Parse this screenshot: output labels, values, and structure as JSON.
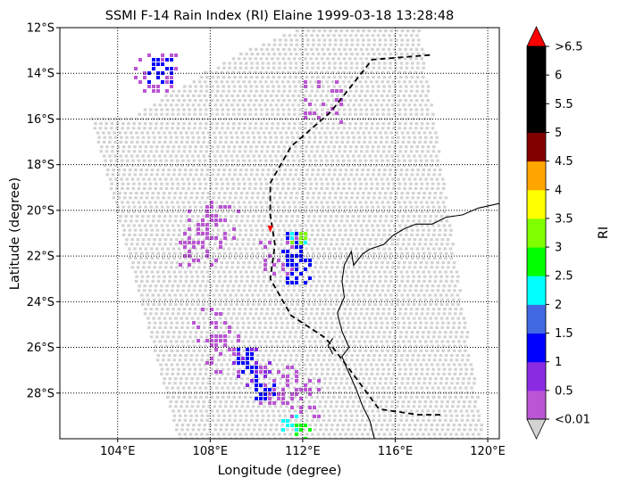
{
  "chart_data": {
    "type": "heatmap",
    "title": "SSMI F-14 Rain Index (RI) Elaine 1999-03-18 13:28:48",
    "xlabel": "Longitude (degree)",
    "ylabel": "Latitude (degree)",
    "xlim": [
      101.5,
      120.5
    ],
    "ylim": [
      -30,
      -12
    ],
    "xticks": [
      104,
      108,
      112,
      116,
      120
    ],
    "xtick_labels": [
      "104°E",
      "108°E",
      "112°E",
      "116°E",
      "120°E"
    ],
    "yticks": [
      -12,
      -14,
      -16,
      -18,
      -20,
      -22,
      -24,
      -26,
      -28
    ],
    "ytick_labels": [
      "12°S",
      "14°S",
      "16°S",
      "18°S",
      "20°S",
      "22°S",
      "24°S",
      "26°S",
      "28°S"
    ],
    "grid": "dotted",
    "colorbar": {
      "label": "RI",
      "tick_labels": [
        "<0.01",
        "0.5",
        "1",
        "1.5",
        "2",
        "2.5",
        "3",
        "3.5",
        "4",
        "4.5",
        "5",
        "5.5",
        "6",
        ">6.5"
      ],
      "bounds": [
        0.01,
        0.5,
        1,
        1.5,
        2,
        2.5,
        3,
        3.5,
        4,
        4.5,
        5,
        5.5,
        6,
        6.5
      ],
      "colors": [
        "#ba55d3",
        "#8a2be2",
        "#0000ff",
        "#4169e1",
        "#00ffff",
        "#00ff00",
        "#7fff00",
        "#ffff00",
        "#ffa500",
        "#800000",
        "#000000",
        "#000000",
        "#000000"
      ],
      "under_color": "#d3d3d3",
      "over_color": "#ff0000",
      "extend": "both"
    },
    "swath_color": "#d3d3d3",
    "swath_corners": [
      [
        107.4,
        -12.0
      ],
      [
        117.0,
        -12.0
      ],
      [
        119.8,
        -30.0
      ],
      [
        112.0,
        -30.0
      ],
      [
        106.6,
        -30.0
      ],
      [
        102.8,
        -15.8
      ],
      [
        107.4,
        -12.0
      ]
    ],
    "rain_regions": [
      {
        "lon": 107.6,
        "lat": -20.8,
        "ri": 0.3
      },
      {
        "lon": 107.4,
        "lat": -21.5,
        "ri": 0.3
      },
      {
        "lon": 108.6,
        "lat": -20.5,
        "ri": 0.3
      },
      {
        "lon": 108.0,
        "lat": -25.0,
        "ri": 0.3
      },
      {
        "lon": 108.5,
        "lat": -26.2,
        "ri": 0.4
      },
      {
        "lon": 109.8,
        "lat": -26.8,
        "ri": 0.8
      },
      {
        "lon": 109.6,
        "lat": -26.6,
        "ri": 1.2
      },
      {
        "lon": 110.4,
        "lat": -27.8,
        "ri": 1.2
      },
      {
        "lon": 111.0,
        "lat": -27.6,
        "ri": 0.4
      },
      {
        "lon": 111.8,
        "lat": -28.2,
        "ri": 0.4
      },
      {
        "lon": 111.4,
        "lat": -29.3,
        "ri": 2.2
      },
      {
        "lon": 111.9,
        "lat": -29.6,
        "ri": 2.8
      },
      {
        "lon": 110.9,
        "lat": -22.0,
        "ri": 0.4
      },
      {
        "lon": 111.6,
        "lat": -21.4,
        "ri": 1.2
      },
      {
        "lon": 111.7,
        "lat": -21.2,
        "ri": 2.2
      },
      {
        "lon": 111.8,
        "lat": -21.1,
        "ri": 3.2
      },
      {
        "lon": 111.7,
        "lat": -22.6,
        "ri": 1.2
      },
      {
        "lon": 105.8,
        "lat": -13.8,
        "ri": 1.2
      },
      {
        "lon": 105.6,
        "lat": -13.9,
        "ri": 0.3
      },
      {
        "lon": 112.8,
        "lat": -15.2,
        "ri": 0.3
      }
    ],
    "storm_track": [
      [
        117.5,
        -13.2
      ],
      [
        115.0,
        -13.4
      ],
      [
        114.3,
        -14.3
      ],
      [
        113.2,
        -15.7
      ],
      [
        111.5,
        -17.2
      ],
      [
        110.6,
        -18.8
      ],
      [
        110.6,
        -20.2
      ],
      [
        110.8,
        -21.5
      ],
      [
        110.6,
        -23.0
      ],
      [
        111.5,
        -24.6
      ],
      [
        113.0,
        -25.6
      ],
      [
        114.2,
        -27.2
      ],
      [
        115.3,
        -28.7
      ],
      [
        117.0,
        -28.95
      ],
      [
        118.0,
        -28.95
      ]
    ],
    "storm_center": {
      "lon": 110.6,
      "lat": -20.9
    }
  }
}
